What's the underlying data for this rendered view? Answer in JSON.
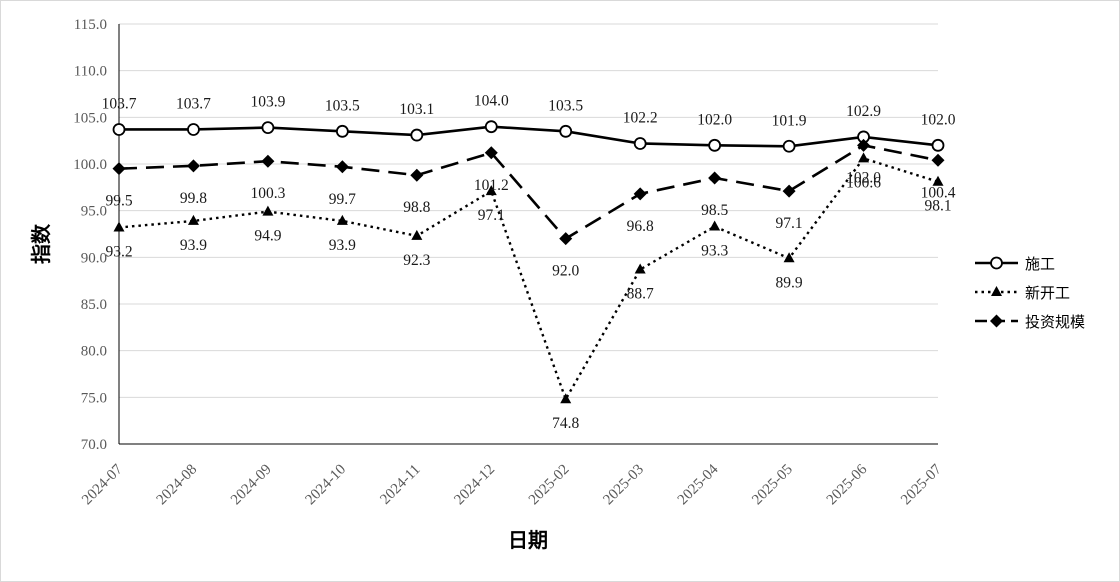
{
  "chart_data": {
    "type": "line",
    "title": "",
    "xlabel": "日期",
    "ylabel": "指数",
    "ylim": [
      70.0,
      115.0
    ],
    "y_ticks": [
      "70.0",
      "75.0",
      "80.0",
      "85.0",
      "90.0",
      "95.0",
      "100.0",
      "105.0",
      "110.0",
      "115.0"
    ],
    "grid": true,
    "legend_position": "right",
    "categories": [
      "2024-07",
      "2024-08",
      "2024-09",
      "2024-10",
      "2024-11",
      "2024-12",
      "2025-02",
      "2025-03",
      "2025-04",
      "2025-05",
      "2025-06",
      "2025-07"
    ],
    "series": [
      {
        "name": "施工",
        "style": "solid",
        "marker": "circle",
        "values": [
          103.7,
          103.7,
          103.9,
          103.5,
          103.1,
          104.0,
          103.5,
          102.2,
          102.0,
          101.9,
          102.9,
          102.0
        ],
        "labels": [
          "103.7",
          "103.7",
          "103.9",
          "103.5",
          "103.1",
          "104.0",
          "103.5",
          "102.2",
          "102.0",
          "101.9",
          "102.9",
          "102.0"
        ]
      },
      {
        "name": "新开工",
        "style": "dotted",
        "marker": "triangle",
        "values": [
          93.2,
          93.9,
          94.9,
          93.9,
          92.3,
          97.1,
          74.8,
          88.7,
          93.3,
          89.9,
          100.6,
          98.1
        ],
        "labels": [
          "93.2",
          "93.9",
          "94.9",
          "93.9",
          "92.3",
          "97.1",
          "74.8",
          "88.7",
          "93.3",
          "89.9",
          "100.6",
          "98.1"
        ]
      },
      {
        "name": "投资规模",
        "style": "dashed",
        "marker": "diamond",
        "values": [
          99.5,
          99.8,
          100.3,
          99.7,
          98.8,
          101.2,
          92.0,
          96.8,
          98.5,
          97.1,
          102.0,
          100.4
        ],
        "labels": [
          "99.5",
          "99.8",
          "100.3",
          "99.7",
          "98.8",
          "101.2",
          "92.0",
          "96.8",
          "98.5",
          "97.1",
          "102.0",
          "100.4"
        ]
      }
    ],
    "colors": {
      "line": "#000000",
      "grid": "#d9d9d9",
      "axis": "#000000"
    }
  }
}
